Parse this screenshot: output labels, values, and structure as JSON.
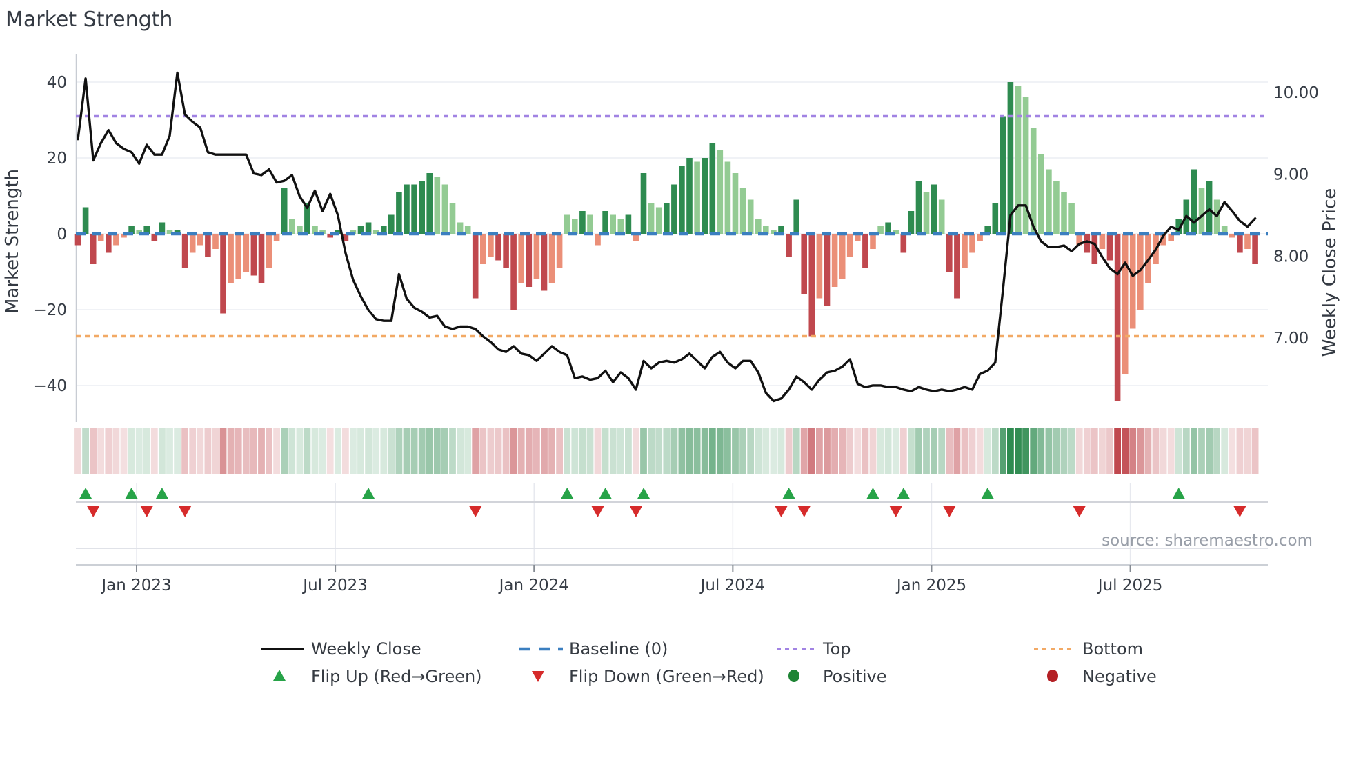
{
  "title": "Market Strength",
  "source": "source: sharemaestro.com",
  "axes": {
    "left": {
      "label": "Market Strength",
      "ticks": [
        40,
        20,
        0,
        -20,
        -40
      ]
    },
    "right": {
      "label": "Weekly Close Price",
      "ticks": [
        "10.00",
        "9.00",
        "8.00",
        "7.00"
      ],
      "tick_values": [
        10,
        9,
        8,
        7
      ]
    },
    "x": {
      "tick_labels": [
        "Jan 2023",
        "Jul 2023",
        "Jan 2024",
        "Jul 2024",
        "Jan 2025",
        "Jul 2025"
      ]
    }
  },
  "legend": {
    "weekly_close": "Weekly Close",
    "baseline": "Baseline (0)",
    "top": "Top",
    "bottom": "Bottom",
    "flip_up": "Flip Up (Red→Green)",
    "flip_down": "Flip Down (Green→Red)",
    "positive": "Positive",
    "negative": "Negative"
  },
  "colors": {
    "bar_dark_green": "#2e8b50",
    "bar_light_green": "#93cb93",
    "bar_dark_red": "#c0484e",
    "bar_light_red": "#eb8f78",
    "strip_green_rgb": "46,139,80",
    "strip_red_rgb": "192,72,78",
    "price_line": "#111111",
    "baseline_dash": "#3b7fc0",
    "top_dash": "#a183e3",
    "bottom_dash": "#f2a965",
    "flip_up": "#27a348",
    "flip_down": "#d62b2b",
    "positive_dot": "#1e8434",
    "negative_dot": "#b42025",
    "grid": "#ebedf3",
    "spine": "#c8ccd3"
  },
  "chart_data": {
    "type": "bar",
    "subtype": "weekly market-strength bars + weekly close price line + heatmap strip + flip markers",
    "frequency": "weekly",
    "n_weeks": 155,
    "title": "Market Strength",
    "ylabel_left": "Market Strength",
    "ylabel_right": "Weekly Close Price",
    "ylim_left": [
      -48,
      45
    ],
    "baseline": 0,
    "top_level": 31,
    "bottom_level": -27,
    "legend_position": "bottom",
    "grid": "horizontal only",
    "x_tick_labels": [
      "Jan 2023",
      "Jul 2023",
      "Jan 2024",
      "Jul 2024",
      "Jan 2025",
      "Jul 2025"
    ],
    "x_tick_weeks": [
      7.67,
      33.67,
      59.67,
      85.67,
      111.67,
      137.67
    ],
    "bar_series_name": "Market Strength",
    "bar_values": [
      -3,
      7,
      -8,
      -2,
      -5,
      -3,
      -1,
      2,
      1,
      2,
      -2,
      3,
      1,
      1,
      -9,
      -5,
      -3,
      -6,
      -4,
      -21,
      -13,
      -12,
      -10,
      -11,
      -13,
      -9,
      -2,
      12,
      4,
      2,
      8,
      2,
      1,
      -1,
      1,
      -2,
      1,
      2,
      3,
      1,
      2,
      5,
      11,
      13,
      13,
      14,
      16,
      15,
      13,
      8,
      3,
      2,
      -17,
      -8,
      -6,
      -7,
      -9,
      -20,
      -13,
      -14,
      -12,
      -15,
      -13,
      -9,
      5,
      4,
      6,
      5,
      -3,
      6,
      5,
      4,
      5,
      -2,
      16,
      8,
      7,
      8,
      13,
      18,
      20,
      19,
      20,
      24,
      22,
      19,
      16,
      12,
      9,
      4,
      2,
      1,
      2,
      -6,
      9,
      -16,
      -27,
      -17,
      -19,
      -14,
      -12,
      -6,
      -2,
      -9,
      -4,
      2,
      3,
      1,
      -5,
      6,
      14,
      11,
      13,
      9,
      -10,
      -17,
      -9,
      -5,
      -2,
      2,
      8,
      31,
      40,
      39,
      36,
      28,
      21,
      17,
      14,
      11,
      8,
      -3,
      -5,
      -8,
      -4,
      -7,
      -44,
      -37,
      -25,
      -20,
      -13,
      -8,
      -3,
      -2,
      4,
      9,
      17,
      12,
      14,
      9,
      2,
      -1,
      -5,
      -4,
      -8
    ],
    "bar_shade_rule": "dark shade when |value| >= |previous value| (intensifying), light shade when fading",
    "line_series_name": "Weekly Close",
    "line_prices": [
      9.43,
      10.17,
      9.17,
      9.38,
      9.54,
      9.38,
      9.31,
      9.27,
      9.13,
      9.36,
      9.24,
      9.24,
      9.47,
      10.24,
      9.73,
      9.64,
      9.57,
      9.27,
      9.24,
      9.24,
      9.24,
      9.24,
      9.24,
      9.01,
      8.99,
      9.06,
      8.9,
      8.92,
      8.99,
      8.73,
      8.59,
      8.8,
      8.55,
      8.76,
      8.5,
      8.04,
      7.71,
      7.51,
      7.34,
      7.23,
      7.21,
      7.21,
      7.78,
      7.48,
      7.37,
      7.32,
      7.25,
      7.27,
      7.14,
      7.11,
      7.14,
      7.14,
      7.11,
      7.02,
      6.95,
      6.86,
      6.83,
      6.9,
      6.81,
      6.79,
      6.72,
      6.81,
      6.9,
      6.83,
      6.79,
      6.51,
      6.53,
      6.49,
      6.51,
      6.6,
      6.46,
      6.58,
      6.51,
      6.37,
      6.72,
      6.63,
      6.7,
      6.72,
      6.7,
      6.74,
      6.81,
      6.72,
      6.63,
      6.77,
      6.83,
      6.7,
      6.63,
      6.72,
      6.72,
      6.58,
      6.33,
      6.23,
      6.26,
      6.37,
      6.53,
      6.46,
      6.37,
      6.49,
      6.58,
      6.6,
      6.65,
      6.74,
      6.44,
      6.4,
      6.42,
      6.42,
      6.4,
      6.4,
      6.37,
      6.35,
      6.4,
      6.37,
      6.35,
      6.37,
      6.35,
      6.37,
      6.4,
      6.37,
      6.56,
      6.6,
      6.7,
      7.58,
      8.5,
      8.62,
      8.62,
      8.36,
      8.18,
      8.11,
      8.11,
      8.13,
      8.06,
      8.15,
      8.18,
      8.15,
      7.99,
      7.85,
      7.78,
      7.92,
      7.76,
      7.83,
      7.95,
      8.08,
      8.25,
      8.36,
      8.32,
      8.49,
      8.41,
      8.49,
      8.57,
      8.49,
      8.66,
      8.55,
      8.43,
      8.36,
      8.46
    ],
    "flip_up_weeks": [
      1,
      7,
      11,
      38,
      64,
      69,
      74,
      93,
      104,
      108,
      119,
      144
    ],
    "flip_down_weeks": [
      2,
      9,
      14,
      52,
      68,
      73,
      92,
      95,
      107,
      114,
      131,
      152
    ],
    "heatmap_strip": "one cell per week, green for positive / red for negative, opacity scaled to |value|"
  }
}
